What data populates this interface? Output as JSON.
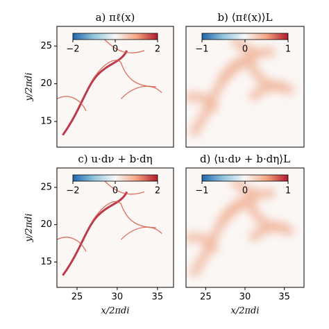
{
  "chart_data": [
    {
      "type": "heatmap",
      "title": "a) πℓ(x)",
      "y_label": "y/2πdi",
      "xlim": [
        22.5,
        37.0
      ],
      "ylim": [
        11.6,
        27.6
      ],
      "yticks": [
        15,
        20,
        25
      ],
      "colorbar": {
        "lim": [
          -2,
          2
        ],
        "ticks": [
          {
            "value": -2,
            "label": "−2"
          },
          0,
          2
        ]
      }
    },
    {
      "type": "heatmap",
      "title": "b) ⟨πℓ(x)⟩L",
      "xlim": [
        22.5,
        37.5
      ],
      "ylim": [
        11.6,
        27.6
      ],
      "colorbar": {
        "lim": [
          -1,
          1
        ],
        "ticks": [
          {
            "value": -1,
            "label": "−1"
          },
          0,
          1
        ]
      }
    },
    {
      "type": "heatmap",
      "title": "c) u·dν + b·dη",
      "y_label": "y/2πdi",
      "x_label": "x/2πdi",
      "xlim": [
        22.5,
        37.0
      ],
      "ylim": [
        11.6,
        27.6
      ],
      "xticks": [
        25,
        30,
        35
      ],
      "yticks": [
        15,
        20,
        25
      ],
      "colorbar": {
        "lim": [
          -2,
          2
        ],
        "ticks": [
          {
            "value": -2,
            "label": "−2"
          },
          0,
          2
        ]
      }
    },
    {
      "type": "heatmap",
      "title": "d) ⟨u·dν + b·dη⟩L",
      "x_label": "x/2πdi",
      "xlim": [
        22.5,
        37.5
      ],
      "ylim": [
        11.6,
        27.6
      ],
      "xticks": [
        25,
        30,
        35
      ],
      "colorbar": {
        "lim": [
          -1,
          1
        ],
        "ticks": [
          {
            "value": -1,
            "label": "−1"
          },
          0,
          1
        ]
      }
    }
  ]
}
